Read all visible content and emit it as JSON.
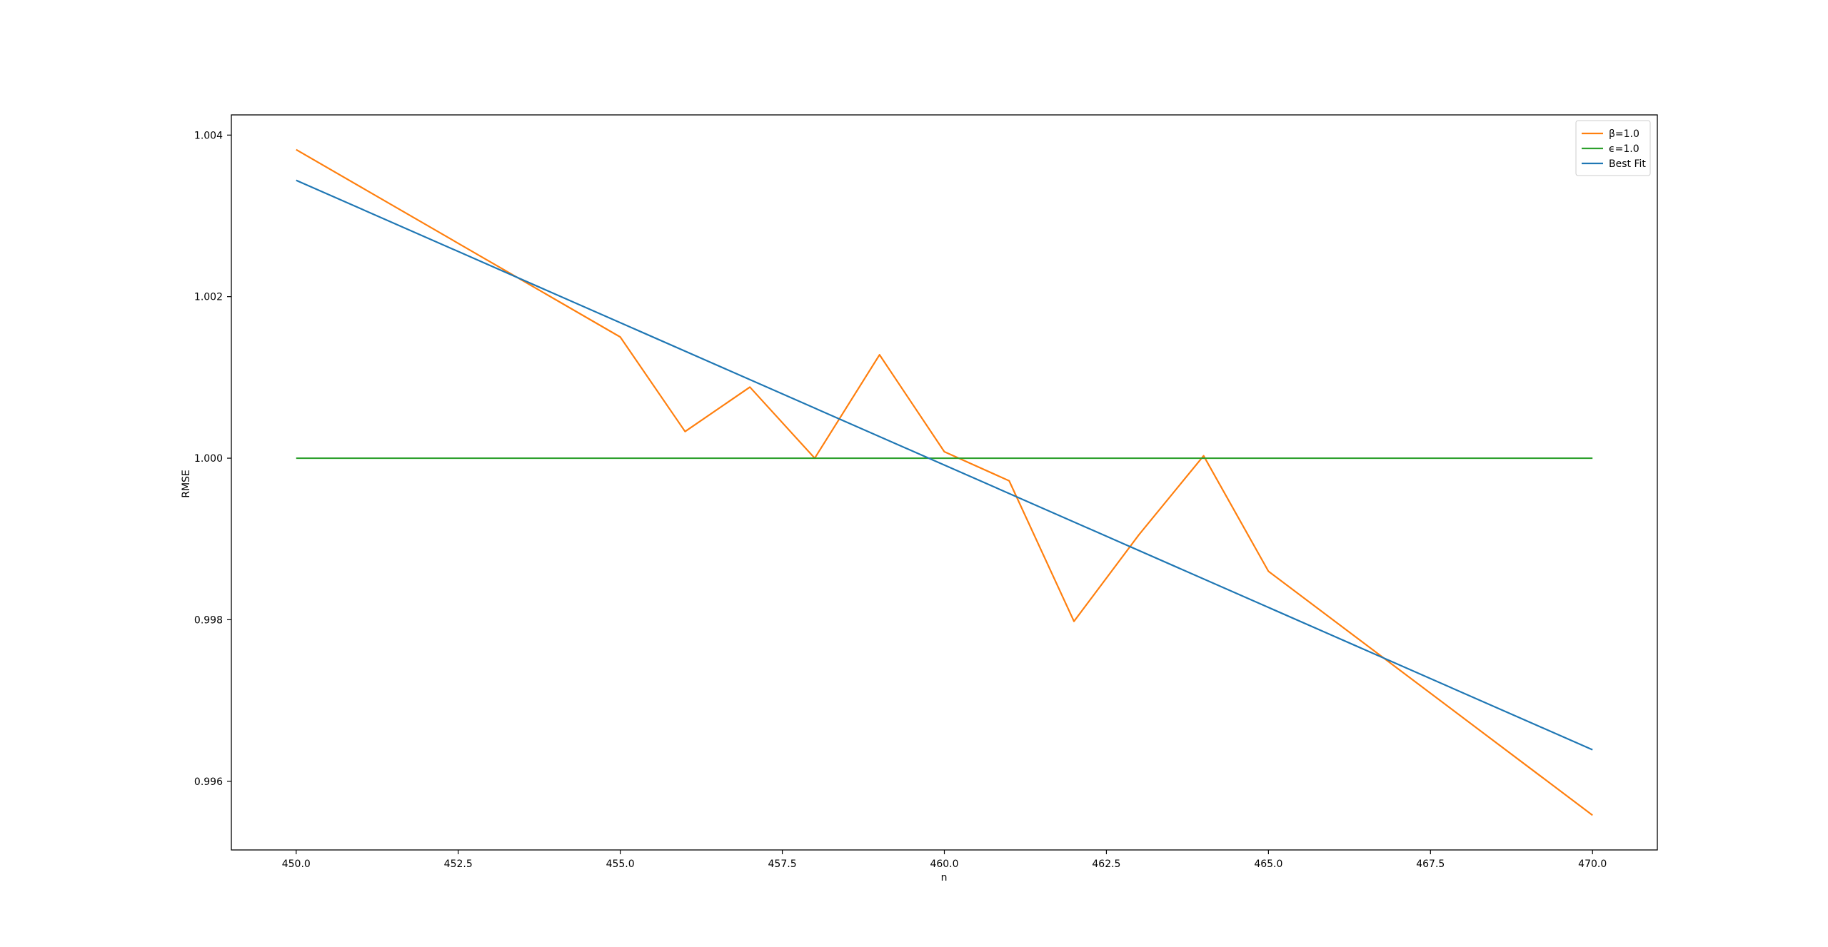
{
  "chart_data": {
    "type": "line",
    "title": "",
    "xlabel": "n",
    "ylabel": "RMSE",
    "xlim": [
      449.0,
      471.0
    ],
    "ylim": [
      0.99515,
      1.00425
    ],
    "xticks": [
      450.0,
      452.5,
      455.0,
      457.5,
      460.0,
      462.5,
      465.0,
      467.5,
      470.0
    ],
    "xtick_labels": [
      "450.0",
      "452.5",
      "455.0",
      "457.5",
      "460.0",
      "462.5",
      "465.0",
      "467.5",
      "470.0"
    ],
    "yticks": [
      0.996,
      0.998,
      1.0,
      1.002,
      1.004
    ],
    "ytick_labels": [
      "0.996",
      "0.998",
      "1.000",
      "1.002",
      "1.004"
    ],
    "grid": false,
    "legend_position": "top-right",
    "series": [
      {
        "name": "β=1.0",
        "color": "#ff7f0e",
        "x": [
          450,
          455,
          456,
          457,
          458,
          459,
          460,
          461,
          462,
          463,
          464,
          465,
          470
        ],
        "y": [
          1.00382,
          1.0015,
          1.00033,
          1.00088,
          1.0,
          1.00128,
          1.00008,
          0.99972,
          0.99798,
          0.99905,
          1.00003,
          0.9986,
          0.99558
        ]
      },
      {
        "name": "ϵ=1.0",
        "color": "#2ca02c",
        "x": [
          450,
          470
        ],
        "y": [
          1.0,
          1.0
        ]
      },
      {
        "name": "Best Fit",
        "color": "#1f77b4",
        "x": [
          450,
          470
        ],
        "y": [
          1.00344,
          0.99639
        ]
      }
    ]
  }
}
